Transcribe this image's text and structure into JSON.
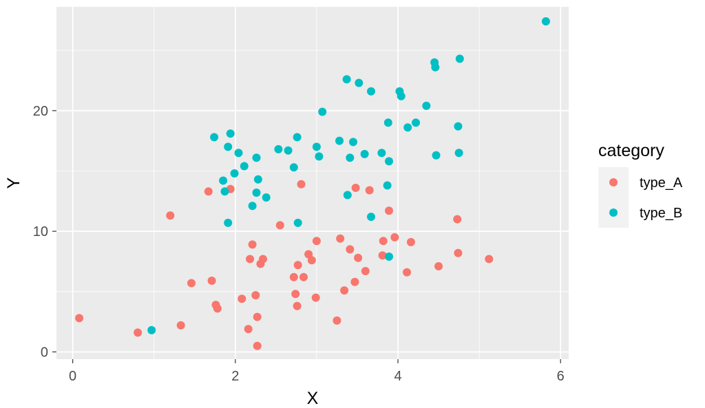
{
  "chart_data": {
    "type": "scatter",
    "title": "",
    "xlabel": "X",
    "ylabel": "Y",
    "xlim": [
      -0.2,
      6.1
    ],
    "ylim": [
      -0.6,
      28.6
    ],
    "xticks": [
      0,
      2,
      4,
      6
    ],
    "xtick_labels": [
      "0",
      "2",
      "4",
      "6"
    ],
    "yticks": [
      0,
      10,
      20
    ],
    "ytick_labels": [
      "0",
      "10",
      "20"
    ],
    "grid": true,
    "legend": {
      "title": "category",
      "placement": "right"
    },
    "series": [
      {
        "name": "type_A",
        "color": "#F8766D",
        "points": [
          [
            0.08,
            2.8
          ],
          [
            0.8,
            1.6
          ],
          [
            1.2,
            11.3
          ],
          [
            1.33,
            2.2
          ],
          [
            1.46,
            5.7
          ],
          [
            1.67,
            13.3
          ],
          [
            1.71,
            5.9
          ],
          [
            1.76,
            3.9
          ],
          [
            1.78,
            3.6
          ],
          [
            1.94,
            13.5
          ],
          [
            2.08,
            4.4
          ],
          [
            2.16,
            1.9
          ],
          [
            2.18,
            7.7
          ],
          [
            2.21,
            8.9
          ],
          [
            2.25,
            4.7
          ],
          [
            2.27,
            0.5
          ],
          [
            2.27,
            2.9
          ],
          [
            2.31,
            7.3
          ],
          [
            2.34,
            7.7
          ],
          [
            2.55,
            10.5
          ],
          [
            2.72,
            6.2
          ],
          [
            2.74,
            4.8
          ],
          [
            2.76,
            3.8
          ],
          [
            2.77,
            7.2
          ],
          [
            2.81,
            13.9
          ],
          [
            2.84,
            6.2
          ],
          [
            2.9,
            8.1
          ],
          [
            2.94,
            7.6
          ],
          [
            2.99,
            4.5
          ],
          [
            3.0,
            9.2
          ],
          [
            3.25,
            2.6
          ],
          [
            3.29,
            9.4
          ],
          [
            3.34,
            5.1
          ],
          [
            3.41,
            8.5
          ],
          [
            3.47,
            5.8
          ],
          [
            3.48,
            13.6
          ],
          [
            3.51,
            7.8
          ],
          [
            3.6,
            6.7
          ],
          [
            3.65,
            13.4
          ],
          [
            3.81,
            8.0
          ],
          [
            3.82,
            9.2
          ],
          [
            3.89,
            11.7
          ],
          [
            3.96,
            9.5
          ],
          [
            4.11,
            6.6
          ],
          [
            4.16,
            9.1
          ],
          [
            4.5,
            7.1
          ],
          [
            4.73,
            11.0
          ],
          [
            4.74,
            8.2
          ],
          [
            5.12,
            7.7
          ]
        ]
      },
      {
        "name": "type_B",
        "color": "#00BFC4",
        "points": [
          [
            0.97,
            1.8
          ],
          [
            1.74,
            17.8
          ],
          [
            1.85,
            14.2
          ],
          [
            1.87,
            13.3
          ],
          [
            1.91,
            17.0
          ],
          [
            1.91,
            10.7
          ],
          [
            1.94,
            18.1
          ],
          [
            1.99,
            14.8
          ],
          [
            2.04,
            16.5
          ],
          [
            2.11,
            15.4
          ],
          [
            2.21,
            12.1
          ],
          [
            2.26,
            16.1
          ],
          [
            2.26,
            13.2
          ],
          [
            2.28,
            14.3
          ],
          [
            2.38,
            12.8
          ],
          [
            2.53,
            16.8
          ],
          [
            2.65,
            16.7
          ],
          [
            2.72,
            15.3
          ],
          [
            2.76,
            17.8
          ],
          [
            2.77,
            10.7
          ],
          [
            3.0,
            17.0
          ],
          [
            3.03,
            16.2
          ],
          [
            3.07,
            19.9
          ],
          [
            3.28,
            17.5
          ],
          [
            3.37,
            22.6
          ],
          [
            3.38,
            13.0
          ],
          [
            3.41,
            16.1
          ],
          [
            3.45,
            17.4
          ],
          [
            3.52,
            22.3
          ],
          [
            3.59,
            16.4
          ],
          [
            3.67,
            21.6
          ],
          [
            3.67,
            11.2
          ],
          [
            3.8,
            16.5
          ],
          [
            3.87,
            13.8
          ],
          [
            3.88,
            19.0
          ],
          [
            3.89,
            15.8
          ],
          [
            3.89,
            7.9
          ],
          [
            4.02,
            21.6
          ],
          [
            4.04,
            21.2
          ],
          [
            4.12,
            18.6
          ],
          [
            4.22,
            19.0
          ],
          [
            4.35,
            20.4
          ],
          [
            4.45,
            24.0
          ],
          [
            4.46,
            23.6
          ],
          [
            4.47,
            16.3
          ],
          [
            4.74,
            18.7
          ],
          [
            4.75,
            16.5
          ],
          [
            4.76,
            24.3
          ],
          [
            5.82,
            27.4
          ]
        ]
      }
    ]
  }
}
